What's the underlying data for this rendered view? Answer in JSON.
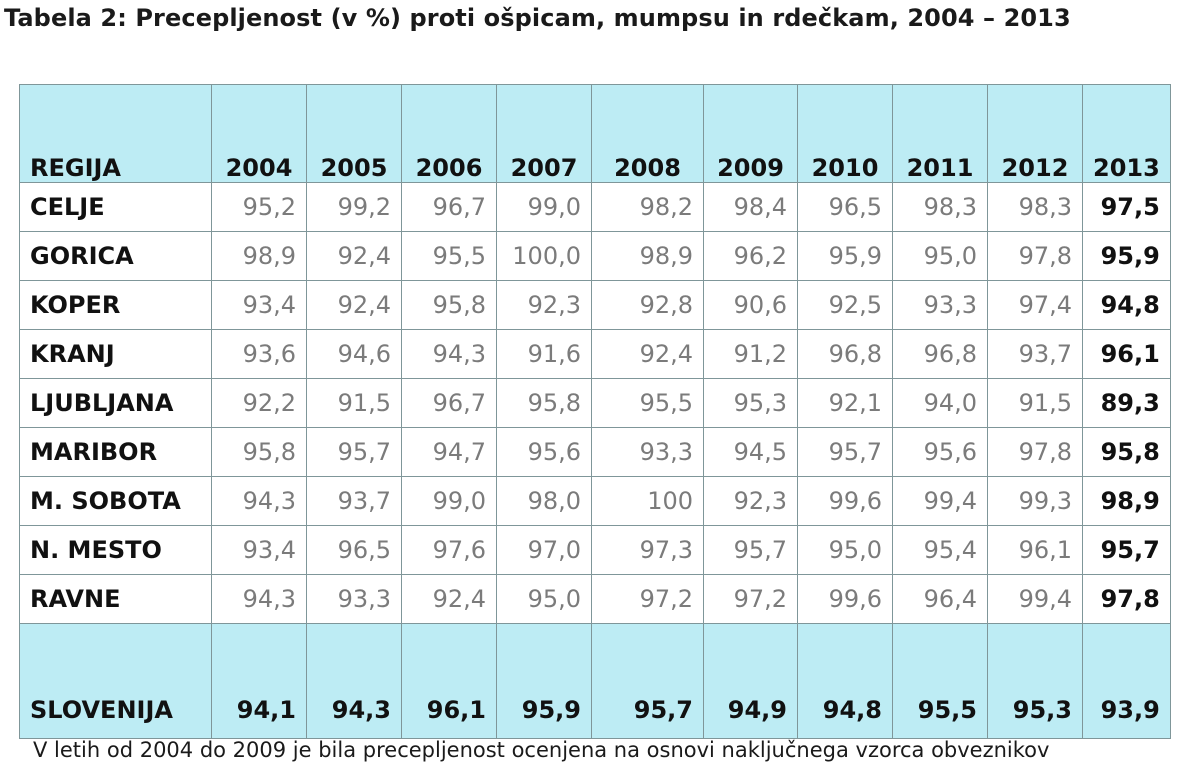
{
  "title": "Tabela 2: Precepljenost (v %) proti ošpicam, mumpsu in rdečkam, 2004 – 2013",
  "table": {
    "region_header": "REGIJA",
    "years": [
      "2004",
      "2005",
      "2006",
      "2007",
      "2008",
      "2009",
      "2010",
      "2011",
      "2012",
      "2013"
    ],
    "rows": [
      {
        "region": "CELJE",
        "values": [
          "95,2",
          "99,2",
          "96,7",
          "99,0",
          "98,2",
          "98,4",
          "96,5",
          "98,3",
          "98,3",
          "97,5"
        ]
      },
      {
        "region": "GORICA",
        "values": [
          "98,9",
          "92,4",
          "95,5",
          "100,0",
          "98,9",
          "96,2",
          "95,9",
          "95,0",
          "97,8",
          "95,9"
        ]
      },
      {
        "region": "KOPER",
        "values": [
          "93,4",
          "92,4",
          "95,8",
          "92,3",
          "92,8",
          "90,6",
          "92,5",
          "93,3",
          "97,4",
          "94,8"
        ]
      },
      {
        "region": "KRANJ",
        "values": [
          "93,6",
          "94,6",
          "94,3",
          "91,6",
          "92,4",
          "91,2",
          "96,8",
          "96,8",
          "93,7",
          "96,1"
        ]
      },
      {
        "region": "LJUBLJANA",
        "values": [
          "92,2",
          "91,5",
          "96,7",
          "95,8",
          "95,5",
          "95,3",
          "92,1",
          "94,0",
          "91,5",
          "89,3"
        ]
      },
      {
        "region": "MARIBOR",
        "values": [
          "95,8",
          "95,7",
          "94,7",
          "95,6",
          "93,3",
          "94,5",
          "95,7",
          "95,6",
          "97,8",
          "95,8"
        ]
      },
      {
        "region": "M. SOBOTA",
        "values": [
          "94,3",
          "93,7",
          "99,0",
          "98,0",
          "100",
          "92,3",
          "99,6",
          "99,4",
          "99,3",
          "98,9"
        ]
      },
      {
        "region": "N. MESTO",
        "values": [
          "93,4",
          "96,5",
          "97,6",
          "97,0",
          "97,3",
          "95,7",
          "95,0",
          "95,4",
          "96,1",
          "95,7"
        ]
      },
      {
        "region": "RAVNE",
        "values": [
          "94,3",
          "93,3",
          "92,4",
          "95,0",
          "97,2",
          "97,2",
          "99,6",
          "96,4",
          "99,4",
          "97,8"
        ]
      }
    ],
    "total": {
      "region": "SLOVENIJA",
      "values": [
        "94,1",
        "94,3",
        "96,1",
        "95,9",
        "95,7",
        "94,9",
        "94,8",
        "95,5",
        "95,3",
        "93,9"
      ]
    }
  },
  "note": "V letih od 2004 do 2009 je bila precepljenost ocenjena na osnovi naključnega vzorca obveznikov",
  "colors": {
    "header_background": "#bdecf4",
    "border": "#7f9699",
    "value_text": "#7b7b7b",
    "bold_text": "#111111"
  }
}
